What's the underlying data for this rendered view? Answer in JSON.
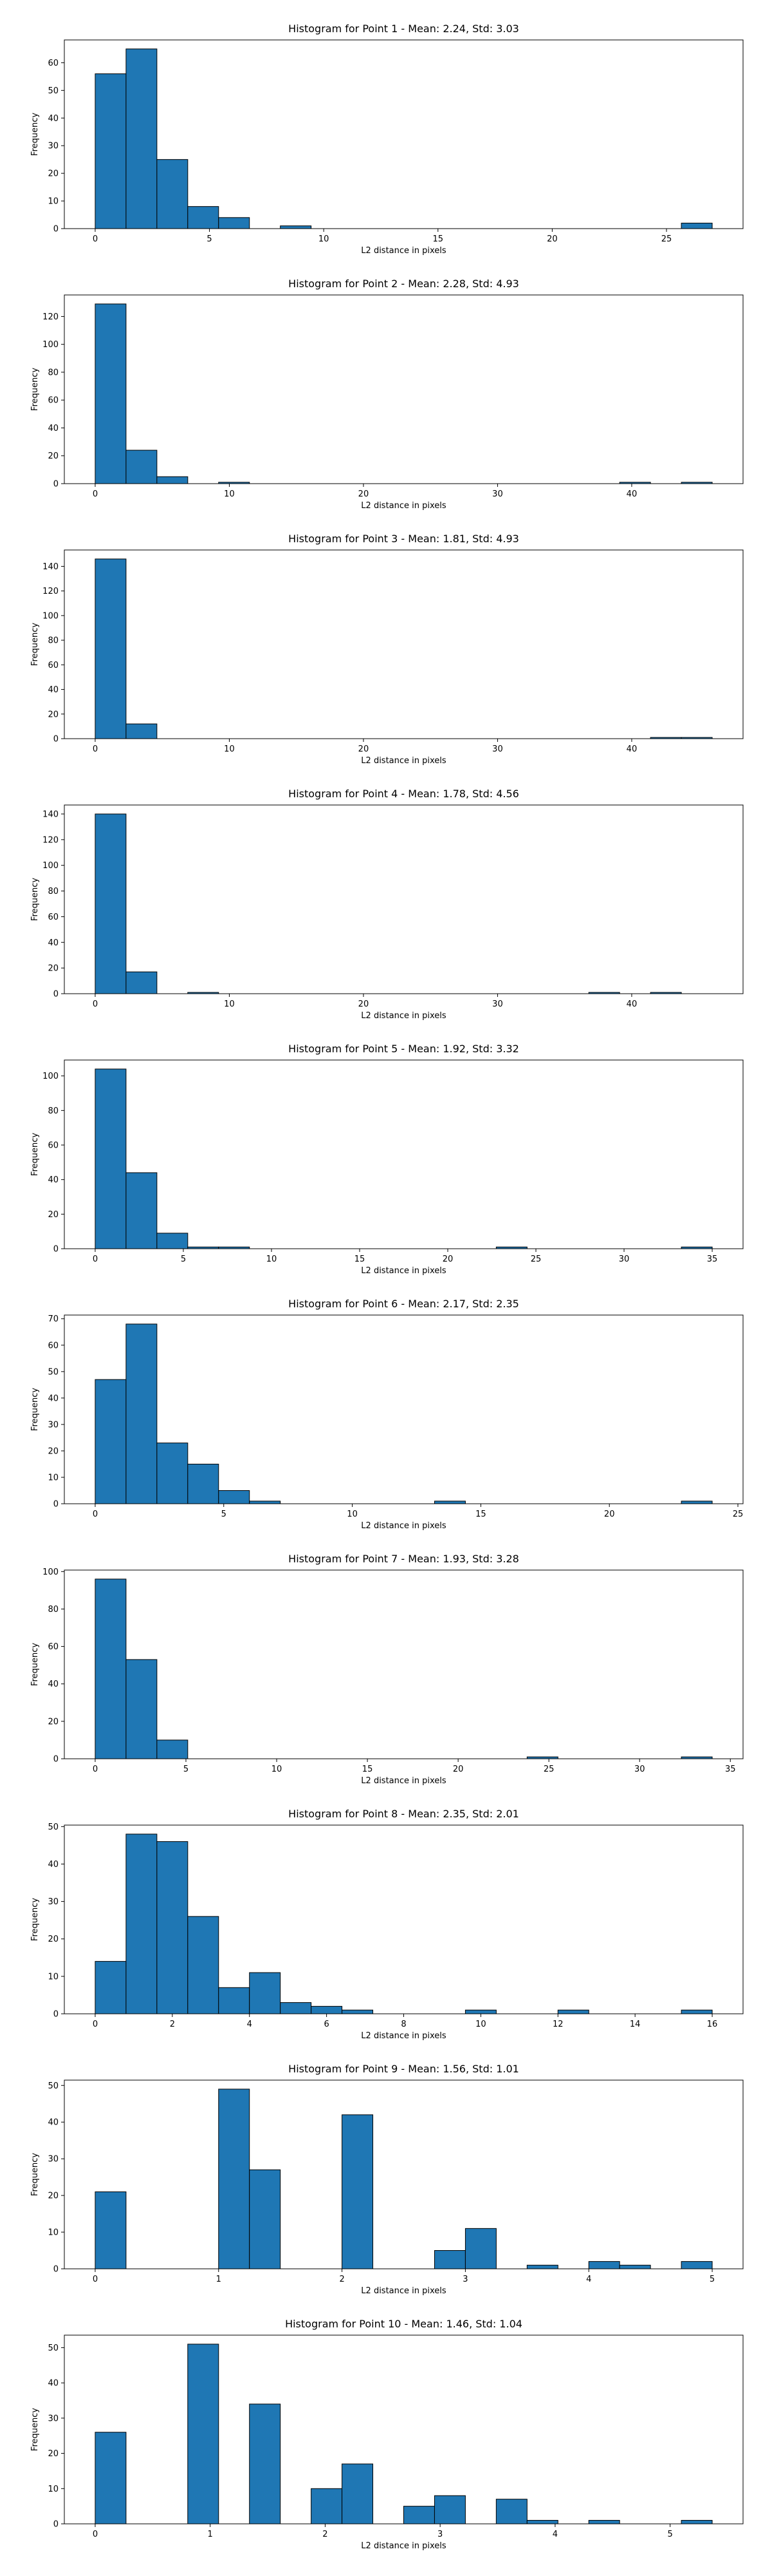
{
  "chart_data": [
    {
      "type": "bar",
      "title": "Histogram for Point 1 - Mean: 2.24, Std: 3.03",
      "xlabel": "L2 distance in pixels",
      "ylabel": "Frequency",
      "xlim": [
        -1.35,
        28.35
      ],
      "ylim": [
        0,
        68.25
      ],
      "xticks": [
        0,
        5,
        10,
        15,
        20,
        25
      ],
      "yticks": [
        0,
        10,
        20,
        30,
        40,
        50,
        60
      ],
      "bins": [
        {
          "x0": 0.0,
          "x1": 1.35,
          "count": 56
        },
        {
          "x0": 1.35,
          "x1": 2.7,
          "count": 65
        },
        {
          "x0": 2.7,
          "x1": 4.05,
          "count": 25
        },
        {
          "x0": 4.05,
          "x1": 5.4,
          "count": 8
        },
        {
          "x0": 5.4,
          "x1": 6.75,
          "count": 4
        },
        {
          "x0": 8.1,
          "x1": 9.45,
          "count": 1
        },
        {
          "x0": 25.65,
          "x1": 27.0,
          "count": 2
        }
      ]
    },
    {
      "type": "bar",
      "title": "Histogram for Point 2 - Mean: 2.28, Std: 4.93",
      "xlabel": "L2 distance in pixels",
      "ylabel": "Frequency",
      "xlim": [
        -2.3,
        48.3
      ],
      "ylim": [
        0,
        135.45
      ],
      "xticks": [
        0,
        10,
        20,
        30,
        40
      ],
      "yticks": [
        0,
        20,
        40,
        60,
        80,
        100,
        120
      ],
      "bins": [
        {
          "x0": 0.0,
          "x1": 2.3,
          "count": 129
        },
        {
          "x0": 2.3,
          "x1": 4.6,
          "count": 24
        },
        {
          "x0": 4.6,
          "x1": 6.9,
          "count": 5
        },
        {
          "x0": 9.2,
          "x1": 11.5,
          "count": 1
        },
        {
          "x0": 39.1,
          "x1": 41.4,
          "count": 1
        },
        {
          "x0": 43.7,
          "x1": 46.0,
          "count": 1
        }
      ]
    },
    {
      "type": "bar",
      "title": "Histogram for Point 3 - Mean: 1.81, Std: 4.93",
      "xlabel": "L2 distance in pixels",
      "ylabel": "Frequency",
      "xlim": [
        -2.3,
        48.3
      ],
      "ylim": [
        0,
        153.3
      ],
      "xticks": [
        0,
        10,
        20,
        30,
        40
      ],
      "yticks": [
        0,
        20,
        40,
        60,
        80,
        100,
        120,
        140
      ],
      "bins": [
        {
          "x0": 0.0,
          "x1": 2.3,
          "count": 146
        },
        {
          "x0": 2.3,
          "x1": 4.6,
          "count": 12
        },
        {
          "x0": 41.4,
          "x1": 43.7,
          "count": 1
        },
        {
          "x0": 43.7,
          "x1": 46.0,
          "count": 1
        }
      ]
    },
    {
      "type": "bar",
      "title": "Histogram for Point 4 - Mean: 1.78, Std: 4.56",
      "xlabel": "L2 distance in pixels",
      "ylabel": "Frequency",
      "xlim": [
        -2.3,
        48.3
      ],
      "ylim": [
        0,
        147.0
      ],
      "xticks": [
        0,
        10,
        20,
        30,
        40
      ],
      "yticks": [
        0,
        20,
        40,
        60,
        80,
        100,
        120,
        140
      ],
      "bins": [
        {
          "x0": 0.0,
          "x1": 2.3,
          "count": 140
        },
        {
          "x0": 2.3,
          "x1": 4.6,
          "count": 17
        },
        {
          "x0": 6.9,
          "x1": 9.2,
          "count": 1
        },
        {
          "x0": 36.8,
          "x1": 39.1,
          "count": 1
        },
        {
          "x0": 41.4,
          "x1": 43.7,
          "count": 1
        }
      ]
    },
    {
      "type": "bar",
      "title": "Histogram for Point 5 - Mean: 1.92, Std: 3.32",
      "xlabel": "L2 distance in pixels",
      "ylabel": "Frequency",
      "xlim": [
        -1.75,
        36.75
      ],
      "ylim": [
        0,
        109.2
      ],
      "xticks": [
        0,
        5,
        10,
        15,
        20,
        25,
        30,
        35
      ],
      "yticks": [
        0,
        20,
        40,
        60,
        80,
        100
      ],
      "bins": [
        {
          "x0": 0.0,
          "x1": 1.75,
          "count": 104
        },
        {
          "x0": 1.75,
          "x1": 3.5,
          "count": 44
        },
        {
          "x0": 3.5,
          "x1": 5.25,
          "count": 9
        },
        {
          "x0": 5.25,
          "x1": 7.0,
          "count": 1
        },
        {
          "x0": 7.0,
          "x1": 8.75,
          "count": 1
        },
        {
          "x0": 22.75,
          "x1": 24.5,
          "count": 1
        },
        {
          "x0": 33.25,
          "x1": 35.0,
          "count": 1
        }
      ]
    },
    {
      "type": "bar",
      "title": "Histogram for Point 6 - Mean: 2.17, Std: 2.35",
      "xlabel": "L2 distance in pixels",
      "ylabel": "Frequency",
      "xlim": [
        -1.2,
        25.2
      ],
      "ylim": [
        0,
        71.4
      ],
      "xticks": [
        0,
        5,
        10,
        15,
        20,
        25
      ],
      "yticks": [
        0,
        10,
        20,
        30,
        40,
        50,
        60,
        70
      ],
      "bins": [
        {
          "x0": 0.0,
          "x1": 1.2,
          "count": 47
        },
        {
          "x0": 1.2,
          "x1": 2.4,
          "count": 68
        },
        {
          "x0": 2.4,
          "x1": 3.6,
          "count": 23
        },
        {
          "x0": 3.6,
          "x1": 4.8,
          "count": 15
        },
        {
          "x0": 4.8,
          "x1": 6.0,
          "count": 5
        },
        {
          "x0": 6.0,
          "x1": 7.2,
          "count": 1
        },
        {
          "x0": 13.2,
          "x1": 14.4,
          "count": 1
        },
        {
          "x0": 22.8,
          "x1": 24.0,
          "count": 1
        }
      ]
    },
    {
      "type": "bar",
      "title": "Histogram for Point 7 - Mean: 1.93, Std: 3.28",
      "xlabel": "L2 distance in pixels",
      "ylabel": "Frequency",
      "xlim": [
        -1.7,
        35.7
      ],
      "ylim": [
        0,
        100.8
      ],
      "xticks": [
        0,
        5,
        10,
        15,
        20,
        25,
        30,
        35
      ],
      "yticks": [
        0,
        20,
        40,
        60,
        80,
        100
      ],
      "bins": [
        {
          "x0": 0.0,
          "x1": 1.7,
          "count": 96
        },
        {
          "x0": 1.7,
          "x1": 3.4,
          "count": 53
        },
        {
          "x0": 3.4,
          "x1": 5.1,
          "count": 10
        },
        {
          "x0": 23.8,
          "x1": 25.5,
          "count": 1
        },
        {
          "x0": 32.3,
          "x1": 34.0,
          "count": 1
        }
      ]
    },
    {
      "type": "bar",
      "title": "Histogram for Point 8 - Mean: 2.35, Std: 2.01",
      "xlabel": "L2 distance in pixels",
      "ylabel": "Frequency",
      "xlim": [
        -0.8,
        16.8
      ],
      "ylim": [
        0,
        50.4
      ],
      "xticks": [
        0,
        2,
        4,
        6,
        8,
        10,
        12,
        14,
        16
      ],
      "yticks": [
        0,
        10,
        20,
        30,
        40,
        50
      ],
      "bins": [
        {
          "x0": 0.0,
          "x1": 0.8,
          "count": 14
        },
        {
          "x0": 0.8,
          "x1": 1.6,
          "count": 48
        },
        {
          "x0": 1.6,
          "x1": 2.4,
          "count": 46
        },
        {
          "x0": 2.4,
          "x1": 3.2,
          "count": 26
        },
        {
          "x0": 3.2,
          "x1": 4.0,
          "count": 7
        },
        {
          "x0": 4.0,
          "x1": 4.8,
          "count": 11
        },
        {
          "x0": 4.8,
          "x1": 5.6,
          "count": 3
        },
        {
          "x0": 5.6,
          "x1": 6.4,
          "count": 2
        },
        {
          "x0": 6.4,
          "x1": 7.2,
          "count": 1
        },
        {
          "x0": 9.6,
          "x1": 10.4,
          "count": 1
        },
        {
          "x0": 12.0,
          "x1": 12.8,
          "count": 1
        },
        {
          "x0": 15.2,
          "x1": 16.0,
          "count": 1
        }
      ]
    },
    {
      "type": "bar",
      "title": "Histogram for Point 9 - Mean: 1.56, Std: 1.01",
      "xlabel": "L2 distance in pixels",
      "ylabel": "Frequency",
      "xlim": [
        -0.25,
        5.25
      ],
      "ylim": [
        0,
        51.45
      ],
      "xticks": [
        0,
        1,
        2,
        3,
        4,
        5
      ],
      "yticks": [
        0,
        10,
        20,
        30,
        40,
        50
      ],
      "bins": [
        {
          "x0": 0.0,
          "x1": 0.25,
          "count": 21
        },
        {
          "x0": 1.0,
          "x1": 1.25,
          "count": 49
        },
        {
          "x0": 1.25,
          "x1": 1.5,
          "count": 27
        },
        {
          "x0": 2.0,
          "x1": 2.25,
          "count": 42
        },
        {
          "x0": 2.75,
          "x1": 3.0,
          "count": 5
        },
        {
          "x0": 3.0,
          "x1": 3.25,
          "count": 11
        },
        {
          "x0": 3.5,
          "x1": 3.75,
          "count": 1
        },
        {
          "x0": 4.0,
          "x1": 4.25,
          "count": 2
        },
        {
          "x0": 4.25,
          "x1": 4.5,
          "count": 1
        },
        {
          "x0": 4.75,
          "x1": 5.0,
          "count": 2
        }
      ]
    },
    {
      "type": "bar",
      "title": "Histogram for Point 10 - Mean: 1.46, Std: 1.04",
      "xlabel": "L2 distance in pixels",
      "ylabel": "Frequency",
      "xlim": [
        -0.2683,
        5.6343
      ],
      "ylim": [
        0,
        53.55
      ],
      "xticks": [
        0,
        1,
        2,
        3,
        4,
        5
      ],
      "yticks": [
        0,
        10,
        20,
        30,
        40,
        50
      ],
      "bins": [
        {
          "x0": 0.0,
          "x1": 0.2683,
          "count": 26
        },
        {
          "x0": 0.8049,
          "x1": 1.0732,
          "count": 51
        },
        {
          "x0": 1.3415,
          "x1": 1.6098,
          "count": 34
        },
        {
          "x0": 1.878,
          "x1": 2.1463,
          "count": 10
        },
        {
          "x0": 2.1463,
          "x1": 2.4146,
          "count": 17
        },
        {
          "x0": 2.6829,
          "x1": 2.9512,
          "count": 5
        },
        {
          "x0": 2.9512,
          "x1": 3.2195,
          "count": 8
        },
        {
          "x0": 3.4878,
          "x1": 3.7561,
          "count": 7
        },
        {
          "x0": 3.7561,
          "x1": 4.0244,
          "count": 1
        },
        {
          "x0": 4.2927,
          "x1": 4.561,
          "count": 1
        },
        {
          "x0": 5.0976,
          "x1": 5.3659,
          "count": 1
        }
      ]
    }
  ]
}
